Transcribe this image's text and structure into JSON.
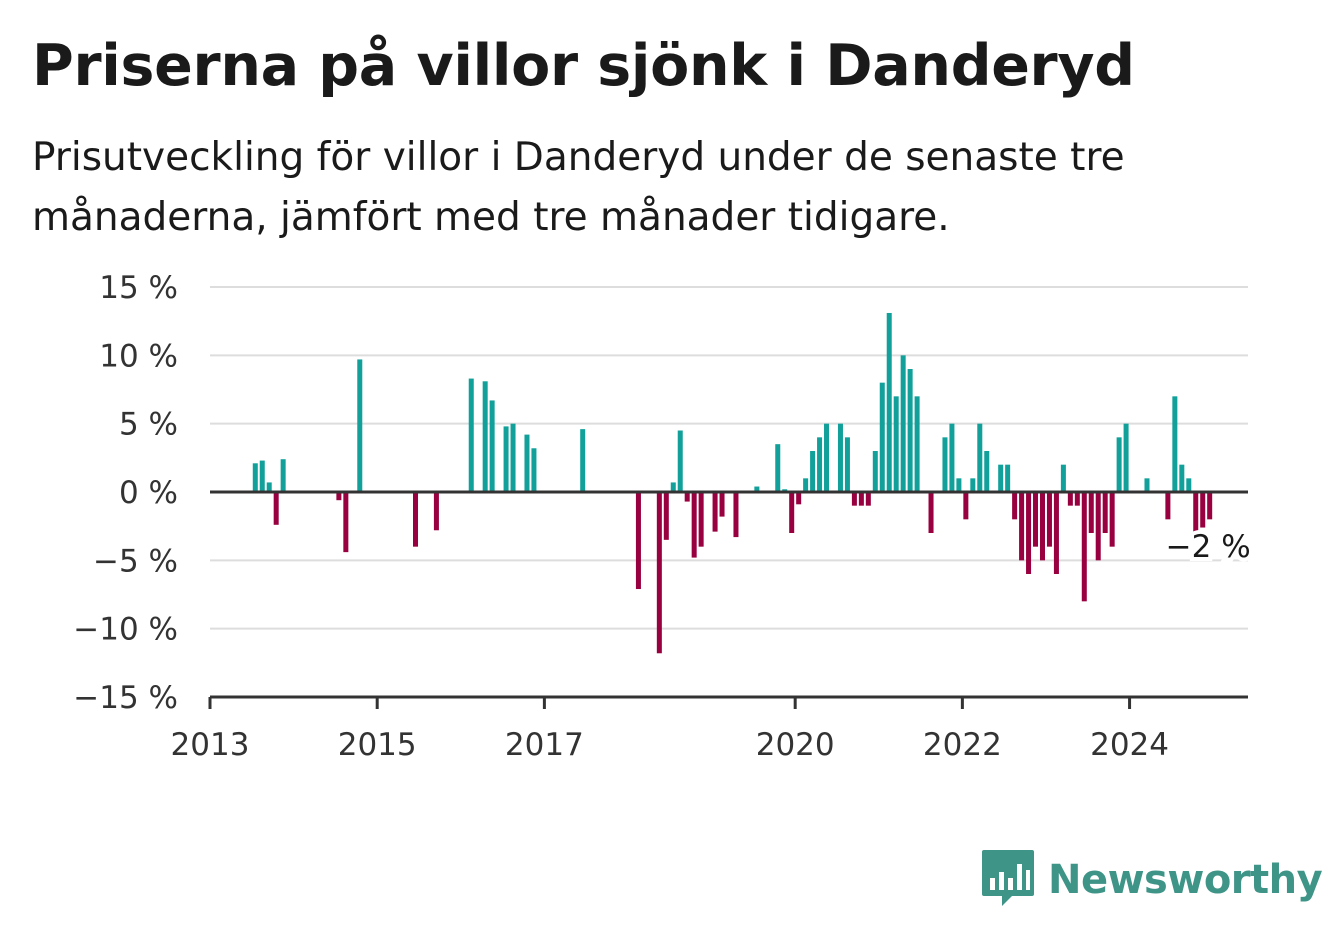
{
  "header": {
    "title": "Priserna på villor sjönk i Danderyd",
    "subtitle": "Prisutveckling för villor i Danderyd under de senaste tre månaderna, jämfört med tre månader tidigare."
  },
  "logo": {
    "text": "Newsworthy",
    "icon": "bar-chart-speech-bubble-icon",
    "color": "#3f9488"
  },
  "colors": {
    "positive": "#12a19a",
    "negative": "#99003f",
    "axis": "#333333",
    "grid": "#dddddd"
  },
  "chart_data": {
    "type": "bar",
    "title": "Priserna på villor sjönk i Danderyd",
    "xlabel": "",
    "ylabel": "",
    "ylim": [
      -15,
      15
    ],
    "y_ticks": [
      15,
      10,
      5,
      0,
      -5,
      -10,
      -15
    ],
    "y_tick_labels": [
      "15 %",
      "10 %",
      "5 %",
      "0 %",
      "−5 %",
      "−10 %",
      "−15 %"
    ],
    "x_range": [
      "2013-01",
      "2025-06"
    ],
    "x_ticks": [
      "2013",
      "2015",
      "2017",
      "2020",
      "2022",
      "2024"
    ],
    "grid": true,
    "annotation": {
      "text": "−2 %",
      "date": "2024-12"
    },
    "dates": [
      "2013-07",
      "2013-08",
      "2013-09",
      "2013-10",
      "2013-11",
      "2014-07",
      "2014-08",
      "2014-10",
      "2015-06",
      "2015-09",
      "2016-02",
      "2016-04",
      "2016-05",
      "2016-07",
      "2016-08",
      "2016-10",
      "2016-11",
      "2017-06",
      "2018-02",
      "2018-05",
      "2018-06",
      "2018-07",
      "2018-08",
      "2018-09",
      "2018-10",
      "2018-11",
      "2019-01",
      "2019-02",
      "2019-04",
      "2019-07",
      "2019-10",
      "2019-11",
      "2019-12",
      "2020-01",
      "2020-02",
      "2020-03",
      "2020-04",
      "2020-05",
      "2020-07",
      "2020-08",
      "2020-09",
      "2020-10",
      "2020-11",
      "2020-12",
      "2021-01",
      "2021-02",
      "2021-03",
      "2021-04",
      "2021-05",
      "2021-06",
      "2021-08",
      "2021-10",
      "2021-11",
      "2021-12",
      "2022-01",
      "2022-02",
      "2022-03",
      "2022-04",
      "2022-06",
      "2022-07",
      "2022-08",
      "2022-09",
      "2022-10",
      "2022-11",
      "2022-12",
      "2023-01",
      "2023-02",
      "2023-03",
      "2023-04",
      "2023-05",
      "2023-06",
      "2023-07",
      "2023-08",
      "2023-09",
      "2023-10",
      "2023-11",
      "2023-12",
      "2024-03",
      "2024-06",
      "2024-07",
      "2024-08",
      "2024-09",
      "2024-10",
      "2024-11",
      "2024-12"
    ],
    "values": [
      2.1,
      2.3,
      0.7,
      -2.4,
      2.4,
      -0.6,
      -4.4,
      9.7,
      -4.0,
      -2.8,
      8.3,
      8.1,
      6.7,
      4.8,
      5.0,
      4.2,
      3.2,
      4.6,
      -7.1,
      -11.8,
      -3.5,
      0.7,
      4.5,
      -0.7,
      -4.8,
      -4.0,
      -2.9,
      -1.8,
      -3.3,
      0.4,
      3.5,
      0.2,
      -3.0,
      -0.9,
      1.0,
      3.0,
      4.0,
      5.0,
      5.0,
      4.0,
      -1.0,
      -1.0,
      -1.0,
      3.0,
      8.0,
      13.1,
      7.0,
      10.0,
      9.0,
      7.0,
      -3.0,
      4.0,
      5.0,
      1.0,
      -2.0,
      1.0,
      5.0,
      3.0,
      2.0,
      2.0,
      -2.0,
      -5.0,
      -6.0,
      -4.0,
      -5.0,
      -4.0,
      -6.0,
      2.0,
      -1.0,
      -1.0,
      -8.0,
      -3.0,
      -5.0,
      -3.0,
      -4.0,
      4.0,
      5.0,
      1.0,
      -2.0,
      7.0,
      2.0,
      1.0,
      -3.0,
      -2.6,
      -2.0
    ]
  }
}
